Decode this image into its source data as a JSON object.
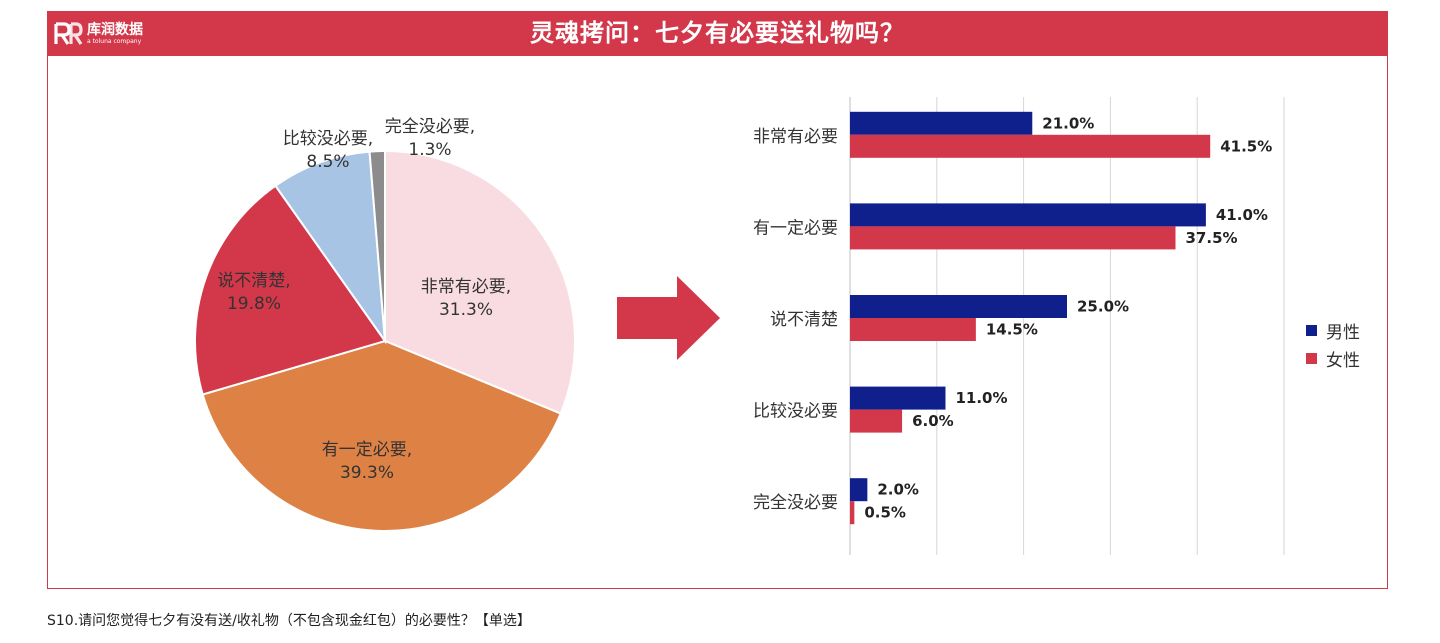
{
  "header": {
    "title": "灵魂拷问：七夕有必要送礼物吗？",
    "logo_name": "库润数据",
    "logo_sub": "a toluna company"
  },
  "footnote": "S10.请问您觉得七夕有没有送/收礼物（不包含现金红包）的必要性？【单选】",
  "colors": {
    "brand_red": "#d2374a",
    "male": "#0f1f8c",
    "female": "#d2374a",
    "pie": [
      "#f8dce2",
      "#dd8244",
      "#d2374a",
      "#a8c4e5",
      "#8c8c8c"
    ]
  },
  "chart_data": [
    {
      "type": "pie",
      "title": "",
      "slices": [
        {
          "label": "非常有必要",
          "value": 31.3,
          "display": "31.3%"
        },
        {
          "label": "有一定必要",
          "value": 39.3,
          "display": "39.3%"
        },
        {
          "label": "说不清楚",
          "value": 19.8,
          "display": "19.8%"
        },
        {
          "label": "比较没必要",
          "value": 8.5,
          "display": "8.5%"
        },
        {
          "label": "完全没必要",
          "value": 1.3,
          "display": "1.3%"
        }
      ]
    },
    {
      "type": "bar",
      "orientation": "horizontal",
      "title": "",
      "categories": [
        "非常有必要",
        "有一定必要",
        "说不清楚",
        "比较没必要",
        "完全没必要"
      ],
      "series": [
        {
          "name": "男性",
          "values": [
            21.0,
            41.0,
            25.0,
            11.0,
            2.0
          ],
          "labels": [
            "21.0%",
            "41.0%",
            "25.0%",
            "11.0%",
            "2.0%"
          ]
        },
        {
          "name": "女性",
          "values": [
            41.5,
            37.5,
            14.5,
            6.0,
            0.5
          ],
          "labels": [
            "41.5%",
            "37.5%",
            "14.5%",
            "6.0%",
            "0.5%"
          ]
        }
      ],
      "xlim": [
        0,
        50
      ],
      "grid": true,
      "legend": "right"
    }
  ]
}
